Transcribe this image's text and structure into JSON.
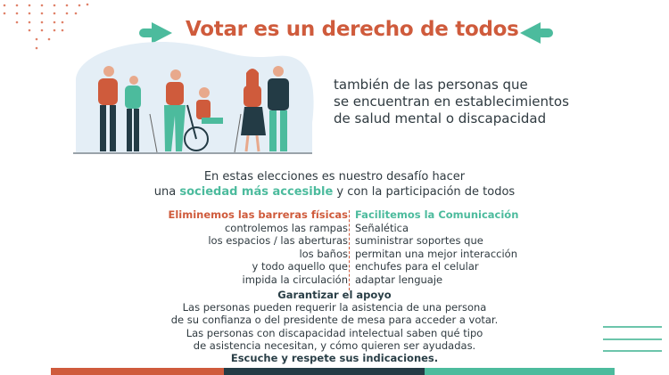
{
  "title": "Votar es un derecho de todos",
  "subtitle": [
    "también de las personas que",
    "se encuentran en establecimientos",
    "de salud mental o discapacidad"
  ],
  "intro": {
    "line1": "En estas elecciones es nuestro desafío hacer",
    "line2_pre": "una ",
    "line2_highlight": "sociedad más accesible",
    "line2_post": " y con la participación de todos"
  },
  "barriers": {
    "heading": "Eliminemos las barreras físicas",
    "items": [
      "controlemos las rampas",
      "los espacios / las aberturas",
      "los baños",
      "y todo aquello que",
      "impida la circulación"
    ]
  },
  "communication": {
    "heading": "Facilitemos la Comunicación",
    "items": [
      "Señalética",
      "suministrar soportes que",
      "permitan una mejor interacción",
      "enchufes para el celular",
      "adaptar lenguaje"
    ]
  },
  "support": {
    "heading": "Garantizar el apoyo",
    "lines": [
      "Las personas pueden requerir la asistencia de una persona",
      "de su confianza o del presidente de mesa para acceder a votar.",
      "Las personas con discapacidad intelectual saben qué tipo",
      "de asistencia necesitan, y cómo quieren ser ayudadas."
    ],
    "closing": "Escuche y respete sus indicaciones."
  },
  "colors": {
    "orange": "#cf5b3c",
    "teal": "#4cbb9d",
    "dark": "#233b45"
  }
}
